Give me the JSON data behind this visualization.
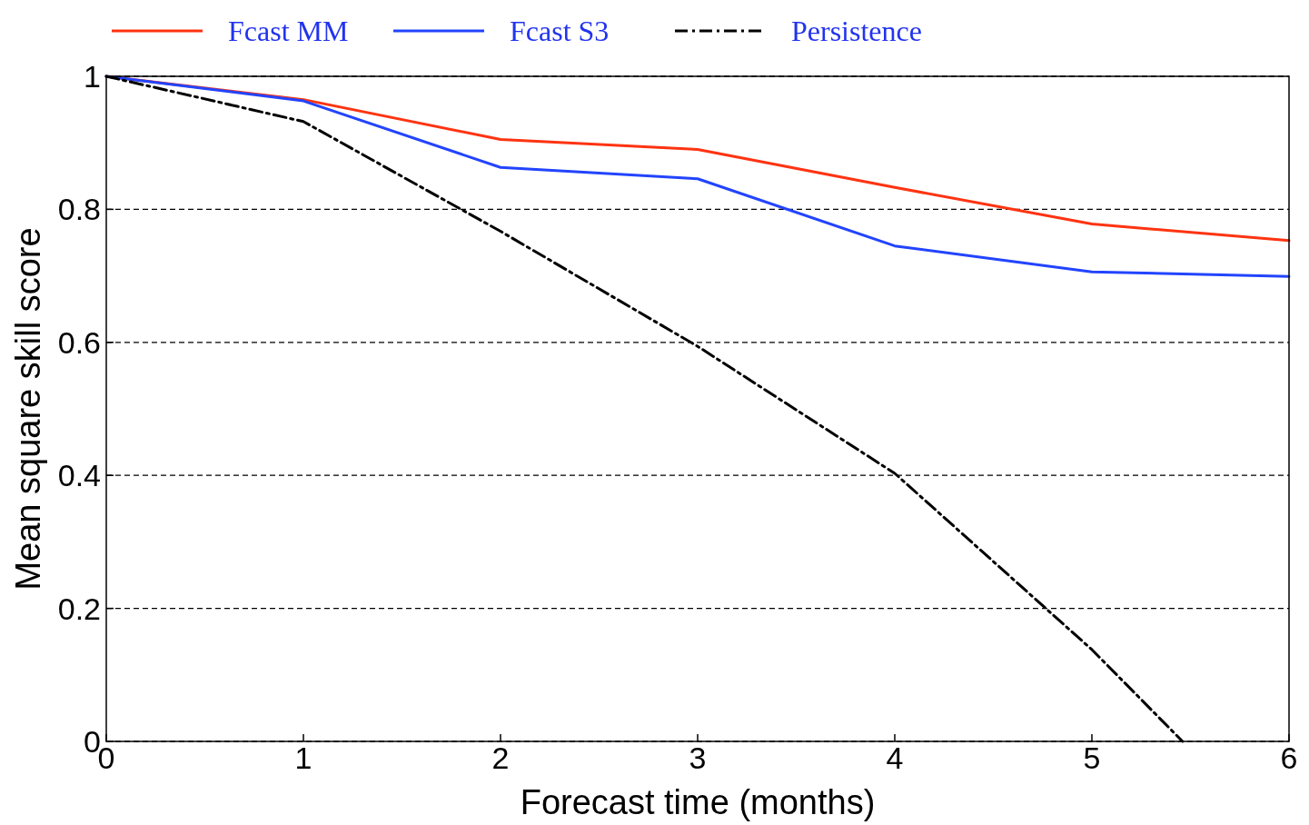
{
  "chart_data": {
    "type": "line",
    "xlabel": "Forecast time (months)",
    "ylabel": "Mean square skill score",
    "x": [
      0,
      1,
      2,
      3,
      4,
      5,
      6
    ],
    "series": [
      {
        "name": "Fcast MM",
        "color": "#ff3311",
        "values": [
          1,
          0.965,
          0.905,
          0.89,
          0.833,
          0.778,
          0.753
        ]
      },
      {
        "name": "Fcast S3",
        "color": "#2244ff",
        "values": [
          1,
          0.963,
          0.863,
          0.846,
          0.745,
          0.706,
          0.699
        ]
      },
      {
        "name": "Persistence",
        "color": "#000000",
        "line_style": "dashed",
        "x": [
          0,
          1,
          2,
          3,
          4,
          5,
          5.46
        ],
        "values": [
          1,
          0.932,
          0.767,
          0.594,
          0.403,
          0.138,
          0
        ]
      }
    ],
    "xlim": [
      0,
      6
    ],
    "xticks": [
      0,
      1,
      2,
      3,
      4,
      5,
      6
    ],
    "ylim": [
      0,
      1
    ],
    "yticks": [
      0,
      0.2,
      0.4,
      0.6,
      0.8,
      1
    ],
    "grid": "y",
    "legend": "top",
    "marker": "none",
    "line_style": "solid"
  }
}
